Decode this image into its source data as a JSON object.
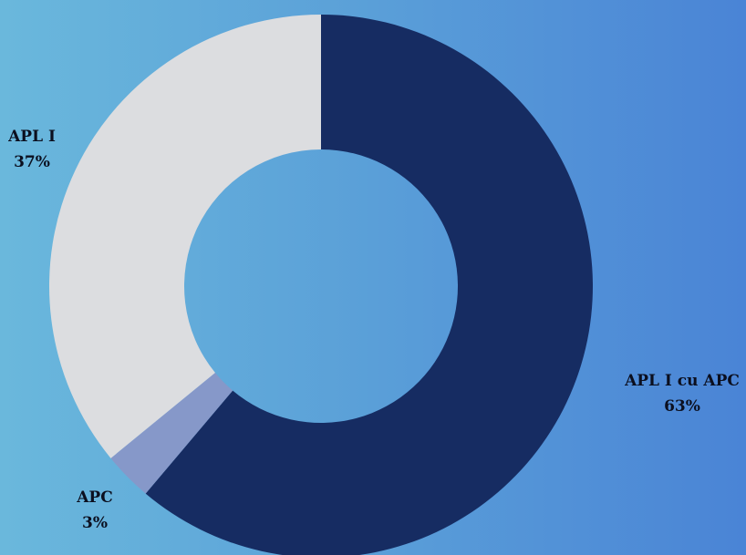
{
  "chart_data": {
    "type": "pie",
    "donut": true,
    "title": "",
    "slices": [
      {
        "name": "APL I cu APC",
        "value": 63,
        "label_value": "63%",
        "color": "#162c62"
      },
      {
        "name": "APC",
        "value": 3,
        "label_value": "3%",
        "color": "#8698c9"
      },
      {
        "name": "APL I",
        "value": 37,
        "label_value": "37%",
        "color": "#dcdde0"
      }
    ]
  }
}
